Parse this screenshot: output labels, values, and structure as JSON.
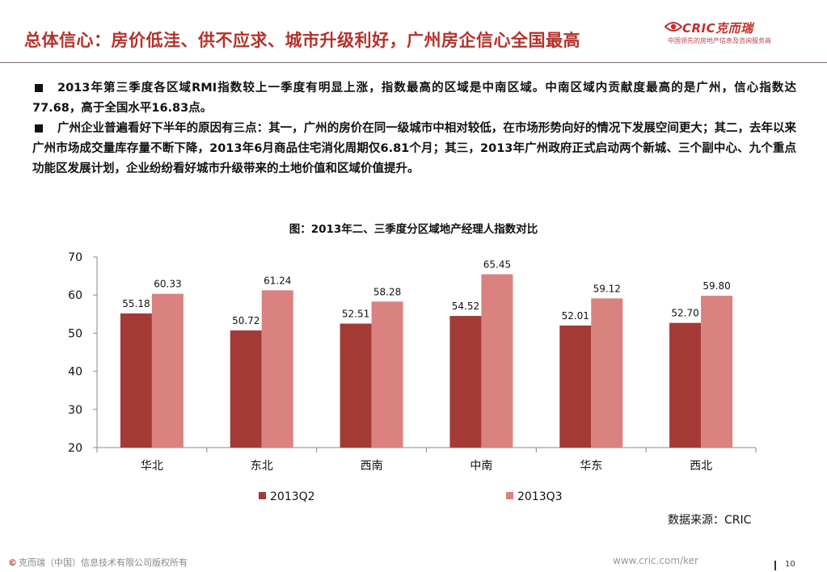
{
  "header": {
    "title": "总体信心：房价低洼、供不应求、城市升级利好，广州房企信心全国最高",
    "logo": {
      "name": "CRIC克而瑞",
      "tagline": "中国领先的房地产信息及咨询服务商",
      "icon": "eye-logo-icon"
    }
  },
  "bullets": [
    "2013年第三季度各区域RMI指数较上一季度有明显上涨，指数最高的区域是中南区域。中南区域内贡献度最高的是广州，信心指数达77.68，高于全国水平16.83点。",
    "广州企业普遍看好下半年的原因有三点：其一，广州的房价在同一级城市中相对较低，在市场形势向好的情况下发展空间更大；其二，去年以来广州市场成交量库存量不断下降，2013年6月商品住宅消化周期仅6.81个月；其三，2013年广州政府正式启动两个新城、三个副中心、九个重点功能区发展计划，企业纷纷看好城市升级带来的土地价值和区域价值提升。"
  ],
  "chart_data": {
    "type": "bar",
    "title": "图：2013年二、三季度分区域地产经理人指数对比",
    "categories": [
      "华北",
      "东北",
      "西南",
      "中南",
      "华东",
      "西北"
    ],
    "series": [
      {
        "name": "2013Q2",
        "values": [
          55.18,
          50.72,
          52.51,
          54.52,
          52.01,
          52.7
        ],
        "labels": [
          "55.18",
          "50.72",
          "52.51",
          "54.52",
          "52.01",
          "52.70"
        ],
        "color": "#a33a36"
      },
      {
        "name": "2013Q3",
        "values": [
          60.33,
          61.24,
          58.28,
          65.45,
          59.12,
          59.8
        ],
        "labels": [
          "60.33",
          "61.24",
          "58.28",
          "65.45",
          "59.12",
          "59.80"
        ],
        "color": "#d9827f"
      }
    ],
    "ylim": [
      20,
      70
    ],
    "yticks": [
      20,
      30,
      40,
      50,
      60,
      70
    ],
    "legend": "bottom",
    "grid": false
  },
  "source": "数据来源：CRIC",
  "footer": {
    "copyright_symbol": "©",
    "copyright": "克而瑞（中国）信息技术有限公司版权所有",
    "url": "www.cric.com/ker",
    "page": "10"
  }
}
